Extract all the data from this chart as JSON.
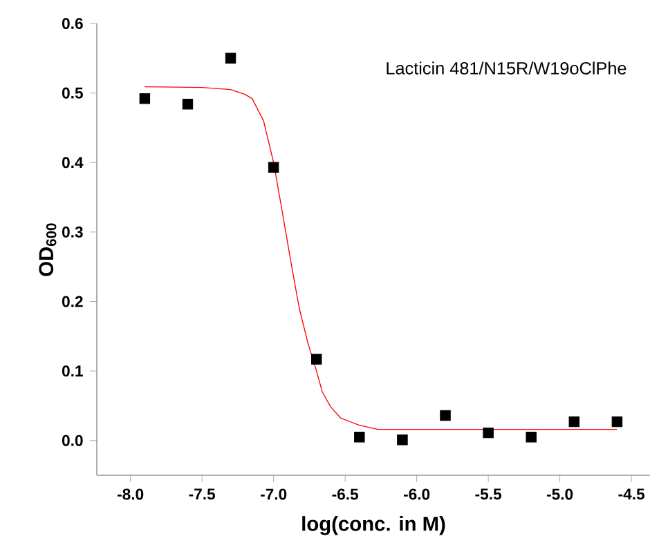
{
  "chart_data": {
    "type": "scatter",
    "xlabel": "log(conc. in M)",
    "ylabel": "OD$_{600}$",
    "annotations": [
      "Lacticin 481/N15R/W19oClPhe"
    ],
    "x": [
      -7.9,
      -7.6,
      -7.3,
      -7.0,
      -6.7,
      -6.4,
      -6.1,
      -5.8,
      -5.5,
      -5.2,
      -4.9,
      -4.6
    ],
    "series": [
      {
        "color": "#000000",
        "marker": "square",
        "values": [
          0.492,
          0.484,
          0.55,
          0.393,
          0.117,
          0.005,
          0.001,
          0.036,
          0.011,
          0.005,
          0.027,
          0.027
        ]
      },
      {
        "type": "line",
        "color": "#ff0000",
        "marker": "none",
        "line_style": "solid",
        "x": [
          -7.9,
          -7.5,
          -7.3,
          -7.2,
          -7.15,
          -7.07,
          -7.0,
          -6.94,
          -6.88,
          -6.82,
          -6.76,
          -6.7,
          -6.66,
          -6.6,
          -6.53,
          -6.4,
          -6.27,
          -4.6
        ],
        "values": [
          0.509,
          0.508,
          0.505,
          0.498,
          0.492,
          0.46,
          0.4,
          0.33,
          0.258,
          0.19,
          0.14,
          0.1,
          0.07,
          0.048,
          0.032,
          0.022,
          0.016,
          0.016
        ]
      }
    ],
    "xlim": [
      -8.235,
      -4.37
    ],
    "ylim": [
      -0.05,
      0.6
    ],
    "xticks": [
      {
        "value": -8.0,
        "label": "-8.0"
      },
      {
        "value": -7.5,
        "label": "-7.5"
      },
      {
        "value": -7.0,
        "label": "-7.0"
      },
      {
        "value": -6.5,
        "label": "-6.5"
      },
      {
        "value": -6.0,
        "label": "-6.0"
      },
      {
        "value": -5.5,
        "label": "-5.5"
      },
      {
        "value": -5.0,
        "label": "-5.0"
      },
      {
        "value": -4.5,
        "label": "-4.5"
      }
    ],
    "yticks": [
      {
        "value": 0.0,
        "label": "0.0"
      },
      {
        "value": 0.1,
        "label": "0.1"
      },
      {
        "value": 0.2,
        "label": "0.2"
      },
      {
        "value": 0.3,
        "label": "0.3"
      },
      {
        "value": 0.4,
        "label": "0.4"
      },
      {
        "value": 0.5,
        "label": "0.5"
      },
      {
        "value": 0.6,
        "label": "0.6"
      }
    ],
    "grid": false
  }
}
